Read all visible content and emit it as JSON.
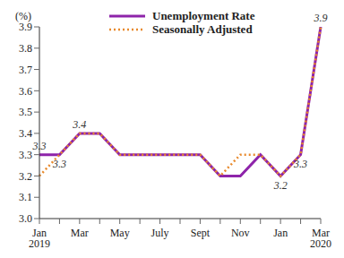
{
  "chart_data": {
    "type": "line",
    "y_label": "(%)",
    "categories": [
      "Jan\n2019",
      null,
      "Mar",
      null,
      "May",
      null,
      "July",
      null,
      "Sept",
      null,
      "Nov",
      null,
      "Jan",
      null,
      "Mar\n2020"
    ],
    "series": [
      {
        "name": "Unemployment Rate",
        "color": "#8e24aa",
        "line_style": "solid",
        "values": [
          3.3,
          3.3,
          3.4,
          3.4,
          3.3,
          3.3,
          3.3,
          3.3,
          3.3,
          3.2,
          3.2,
          3.3,
          3.2,
          3.3,
          3.9
        ]
      },
      {
        "name": "Seasonally Adjusted",
        "color": "#e8892b",
        "line_style": "dotted",
        "values": [
          3.2,
          3.3,
          3.4,
          3.4,
          3.3,
          3.3,
          3.3,
          3.3,
          3.3,
          3.2,
          3.3,
          3.3,
          3.2,
          3.3,
          3.9
        ]
      }
    ],
    "ylim": [
      3,
      3.9
    ],
    "yticks": [
      {
        "value": 3,
        "label": "3.0"
      },
      3.1,
      3.2,
      3.3,
      3.4,
      3.5,
      3.6,
      3.7,
      3.8,
      3.9
    ],
    "grid": false,
    "legend": "top",
    "annotations": [
      {
        "text": "3.3",
        "category_index": 0,
        "value": 3.3,
        "series": "Unemployment Rate"
      },
      {
        "text": "3.3",
        "category_index": 1,
        "value": 3.3,
        "series": "Seasonally Adjusted"
      },
      {
        "text": "3.4",
        "category_index": 2,
        "value": 3.4,
        "series": "Unemployment Rate"
      },
      {
        "text": "3.2",
        "category_index": 12,
        "value": 3.2,
        "series": "Seasonally Adjusted"
      },
      {
        "text": "3.3",
        "category_index": 13,
        "value": 3.3,
        "series": "Seasonally Adjusted"
      },
      {
        "text": "3.9",
        "category_index": 14,
        "value": 3.9,
        "series": "Unemployment Rate"
      }
    ]
  }
}
